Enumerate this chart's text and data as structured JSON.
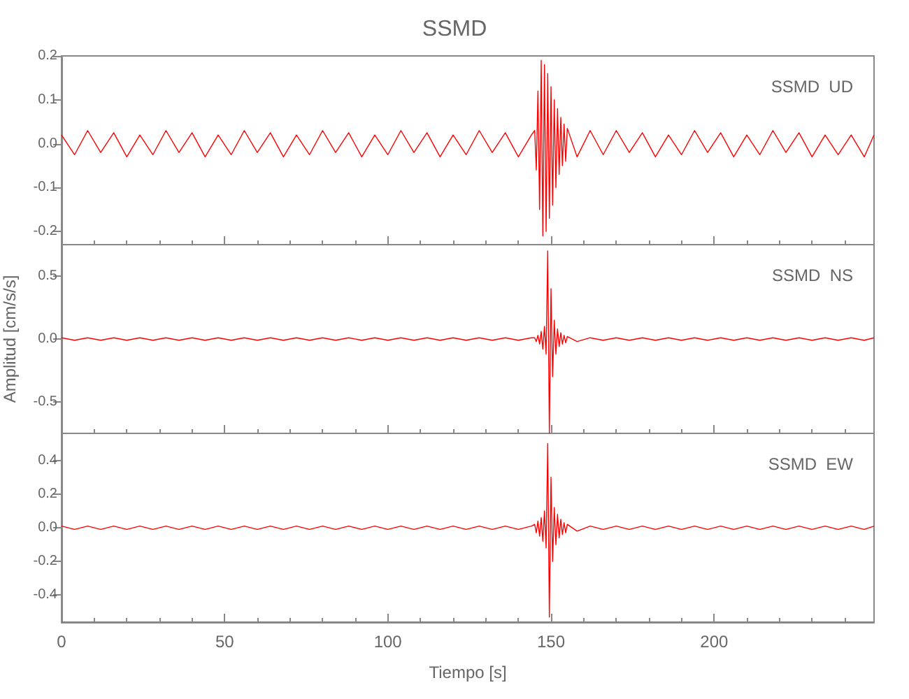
{
  "chart_data": [
    {
      "type": "line",
      "title": "SSMD",
      "annotations": [
        "SSMD  UD"
      ],
      "tick_labels": "y",
      "x": [
        0,
        4,
        8,
        12,
        16,
        20,
        24,
        28,
        32,
        36,
        40,
        44,
        48,
        52,
        56,
        60,
        64,
        68,
        72,
        76,
        80,
        84,
        88,
        92,
        96,
        100,
        104,
        108,
        112,
        116,
        120,
        124,
        128,
        132,
        136,
        140,
        144,
        145,
        145.5,
        146,
        146.5,
        147,
        147.5,
        148,
        148.5,
        149,
        149.5,
        150,
        150.5,
        151,
        151.5,
        152,
        152.5,
        153,
        153.5,
        154,
        154.5,
        155,
        158,
        162,
        166,
        170,
        174,
        178,
        182,
        186,
        190,
        194,
        198,
        202,
        206,
        210,
        214,
        218,
        222,
        226,
        230,
        234,
        238,
        242,
        246,
        249
      ],
      "series": [
        {
          "color": "#ff0000",
          "values": [
            0.02,
            -0.025,
            0.03,
            -0.02,
            0.025,
            -0.03,
            0.02,
            -0.025,
            0.03,
            -0.02,
            0.025,
            -0.03,
            0.02,
            -0.025,
            0.03,
            -0.02,
            0.025,
            -0.03,
            0.02,
            -0.025,
            0.03,
            -0.02,
            0.025,
            -0.03,
            0.02,
            -0.025,
            0.03,
            -0.02,
            0.025,
            -0.03,
            0.02,
            -0.025,
            0.03,
            -0.02,
            0.025,
            -0.03,
            0.02,
            0.03,
            -0.06,
            0.12,
            -0.15,
            0.19,
            -0.21,
            0.18,
            -0.2,
            0.16,
            -0.17,
            0.13,
            -0.14,
            0.1,
            -0.1,
            0.08,
            -0.07,
            0.06,
            -0.05,
            0.045,
            -0.04,
            0.035,
            -0.03,
            0.03,
            -0.025,
            0.03,
            -0.02,
            0.025,
            -0.03,
            0.02,
            -0.025,
            0.03,
            -0.02,
            0.025,
            -0.03,
            0.02,
            -0.025,
            0.03,
            -0.02,
            0.025,
            -0.03,
            0.02,
            -0.025,
            0.02,
            -0.03,
            0.02
          ]
        }
      ],
      "xlim": [
        0,
        249
      ],
      "xticks": [
        0,
        50,
        100,
        150,
        200
      ],
      "ylim": [
        -0.23,
        0.2
      ],
      "yticks": [
        {
          "value": -0.2,
          "label": "-0.2"
        },
        {
          "value": -0.1,
          "label": "-0.1"
        },
        {
          "value": 0,
          "label": "0.0"
        },
        {
          "value": 0.1,
          "label": "0.1"
        },
        {
          "value": 0.2,
          "label": "0.2"
        }
      ]
    },
    {
      "type": "line",
      "ylabel": "Amplitud [cm/s/s]",
      "annotations": [
        "SSMD  NS"
      ],
      "tick_labels": "y",
      "x": [
        0,
        4,
        8,
        12,
        16,
        20,
        24,
        28,
        32,
        36,
        40,
        44,
        48,
        52,
        56,
        60,
        64,
        68,
        72,
        76,
        80,
        84,
        88,
        92,
        96,
        100,
        104,
        108,
        112,
        116,
        120,
        124,
        128,
        132,
        136,
        140,
        144,
        145,
        145.5,
        146,
        146.5,
        147,
        147.5,
        148,
        148.5,
        149,
        149.5,
        150,
        150.5,
        151,
        151.5,
        152,
        152.5,
        153,
        153.5,
        154,
        154.5,
        155,
        158,
        162,
        166,
        170,
        174,
        178,
        182,
        186,
        190,
        194,
        198,
        202,
        206,
        210,
        214,
        218,
        222,
        226,
        230,
        234,
        238,
        242,
        246,
        249
      ],
      "series": [
        {
          "color": "#ff0000",
          "values": [
            0.01,
            -0.01,
            0.01,
            -0.01,
            0.01,
            -0.01,
            0.01,
            -0.01,
            0.01,
            -0.01,
            0.01,
            -0.01,
            0.01,
            -0.01,
            0.01,
            -0.01,
            0.01,
            -0.01,
            0.01,
            -0.01,
            0.01,
            -0.01,
            0.01,
            -0.01,
            0.01,
            -0.01,
            0.01,
            -0.01,
            0.01,
            -0.01,
            0.01,
            -0.01,
            0.01,
            -0.01,
            0.01,
            -0.01,
            0.01,
            0.01,
            -0.02,
            0.03,
            -0.04,
            0.06,
            -0.08,
            0.1,
            -0.12,
            0.7,
            -0.75,
            0.4,
            -0.3,
            0.15,
            -0.12,
            0.08,
            -0.06,
            0.05,
            -0.04,
            0.03,
            -0.03,
            0.02,
            -0.02,
            0.01,
            -0.01,
            0.01,
            -0.01,
            0.01,
            -0.01,
            0.01,
            -0.01,
            0.01,
            -0.01,
            0.01,
            -0.01,
            0.01,
            -0.01,
            0.01,
            -0.01,
            0.01,
            -0.01,
            0.01,
            -0.01,
            0.01,
            -0.01,
            0.01
          ]
        }
      ],
      "xlim": [
        0,
        249
      ],
      "xticks": [
        0,
        50,
        100,
        150,
        200
      ],
      "ylim": [
        -0.75,
        0.75
      ],
      "yticks": [
        {
          "value": -0.5,
          "label": "-0.5"
        },
        {
          "value": 0,
          "label": "0.0"
        },
        {
          "value": 0.5,
          "label": "0.5"
        }
      ]
    },
    {
      "type": "line",
      "xlabel": "Tiempo [s]",
      "annotations": [
        "SSMD  EW"
      ],
      "x": [
        0,
        4,
        8,
        12,
        16,
        20,
        24,
        28,
        32,
        36,
        40,
        44,
        48,
        52,
        56,
        60,
        64,
        68,
        72,
        76,
        80,
        84,
        88,
        92,
        96,
        100,
        104,
        108,
        112,
        116,
        120,
        124,
        128,
        132,
        136,
        140,
        144,
        145,
        145.5,
        146,
        146.5,
        147,
        147.5,
        148,
        148.5,
        149,
        149.5,
        150,
        150.5,
        151,
        151.5,
        152,
        152.5,
        153,
        153.5,
        154,
        154.5,
        155,
        158,
        162,
        166,
        170,
        174,
        178,
        182,
        186,
        190,
        194,
        198,
        202,
        206,
        210,
        214,
        218,
        222,
        226,
        230,
        234,
        238,
        242,
        246,
        249
      ],
      "series": [
        {
          "color": "#ff0000",
          "values": [
            0.01,
            -0.01,
            0.01,
            -0.01,
            0.01,
            -0.01,
            0.01,
            -0.01,
            0.01,
            -0.01,
            0.01,
            -0.01,
            0.01,
            -0.01,
            0.01,
            -0.01,
            0.01,
            -0.01,
            0.01,
            -0.01,
            0.01,
            -0.01,
            0.01,
            -0.01,
            0.01,
            -0.01,
            0.01,
            -0.01,
            0.01,
            -0.01,
            0.01,
            -0.01,
            0.01,
            -0.01,
            0.01,
            -0.01,
            0.01,
            0.02,
            -0.03,
            0.04,
            -0.05,
            0.06,
            -0.08,
            0.1,
            -0.12,
            0.5,
            -0.53,
            0.3,
            -0.2,
            0.12,
            -0.1,
            0.08,
            -0.06,
            0.05,
            -0.04,
            0.03,
            -0.03,
            0.02,
            -0.02,
            0.01,
            -0.01,
            0.01,
            -0.01,
            0.01,
            -0.01,
            0.01,
            -0.01,
            0.01,
            -0.01,
            0.01,
            -0.01,
            0.01,
            -0.01,
            0.01,
            -0.01,
            0.01,
            -0.01,
            0.01,
            -0.01,
            0.01,
            -0.01,
            0.01
          ]
        }
      ],
      "xlim": [
        0,
        249
      ],
      "xticks": [
        0,
        50,
        100,
        150,
        200
      ],
      "ylim": [
        -0.56,
        0.56
      ],
      "yticks": [
        {
          "value": -0.4,
          "label": "-0.4"
        },
        {
          "value": -0.2,
          "label": "-0.2"
        },
        {
          "value": 0,
          "label": "0.0"
        },
        {
          "value": 0.2,
          "label": "0.2"
        },
        {
          "value": 0.4,
          "label": "0.4"
        }
      ]
    }
  ]
}
